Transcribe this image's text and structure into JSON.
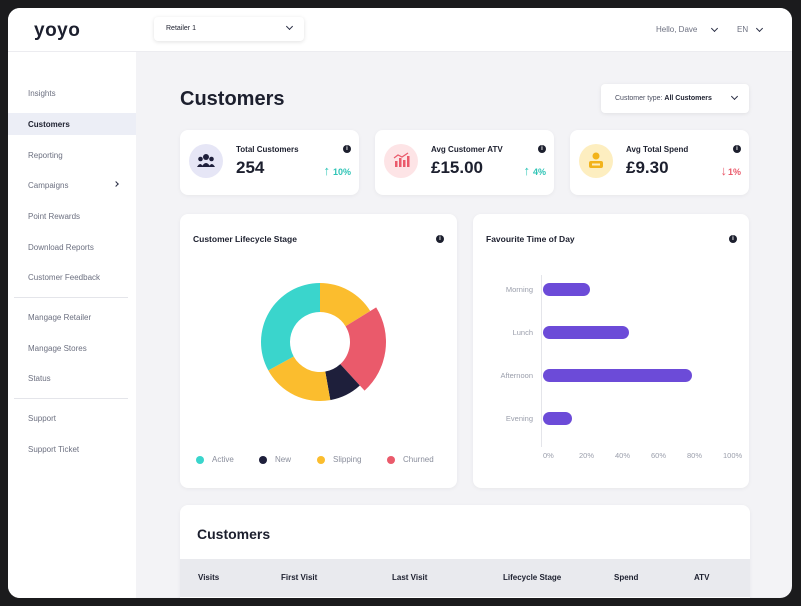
{
  "app": {
    "logo": "yoyo"
  },
  "header": {
    "retailer": "Retailer 1",
    "greeting": "Hello, Dave",
    "language": "EN"
  },
  "sidebar": {
    "items": [
      {
        "label": "Insights"
      },
      {
        "label": "Customers",
        "active": true
      },
      {
        "label": "Reporting"
      },
      {
        "label": "Campaigns"
      },
      {
        "label": "Point Rewards"
      },
      {
        "label": "Download Reports"
      },
      {
        "label": "Customer Feedback"
      },
      {
        "label": "Mangage Retailer"
      },
      {
        "label": "Mangage Stores"
      },
      {
        "label": "Status"
      },
      {
        "label": "Support"
      },
      {
        "label": "Support Ticket"
      }
    ]
  },
  "page": {
    "title": "Customers",
    "filter_label": "Customer type:",
    "filter_value": "All Customers"
  },
  "stats": [
    {
      "label": "Total Customers",
      "value": "254",
      "change": "10%",
      "direction": "up",
      "icon": "users-icon",
      "color": "#2ec4b6"
    },
    {
      "label": "Avg Customer ATV",
      "value": "£15.00",
      "change": "4%",
      "direction": "up",
      "icon": "bar-chart-icon",
      "color": "#2ec4b6"
    },
    {
      "label": "Avg Total Spend",
      "value": "£9.30",
      "change": "1%",
      "direction": "down",
      "icon": "coin-icon",
      "color": "#ea5a6b"
    }
  ],
  "lifecycle": {
    "title": "Customer Lifecycle Stage",
    "legend": [
      "Active",
      "New",
      "Slipping",
      "Churned"
    ],
    "colors": [
      "#3ad5cc",
      "#1e1f3b",
      "#fbbd2e",
      "#ea5a6b"
    ]
  },
  "time_of_day": {
    "title": "Favourite Time of Day",
    "bar_color": "#6c4bd8"
  },
  "chart_data": [
    {
      "type": "pie",
      "categories": [
        "Active",
        "New",
        "Slipping",
        "Churned"
      ],
      "values": [
        33,
        9,
        36,
        22
      ],
      "title": "Customer Lifecycle Stage"
    },
    {
      "type": "bar",
      "orientation": "horizontal",
      "categories": [
        "Morning",
        "Lunch",
        "Afternoon",
        "Evening"
      ],
      "values": [
        26,
        48,
        83,
        16
      ],
      "xticks": [
        "0%",
        "20%",
        "40%",
        "60%",
        "80%",
        "100%"
      ],
      "xlim": [
        0,
        100
      ],
      "title": "Favourite Time of Day"
    }
  ],
  "table": {
    "title": "Customers",
    "columns": [
      "Visits",
      "First Visit",
      "Last Visit",
      "Lifecycle Stage",
      "Spend",
      "ATV"
    ]
  }
}
